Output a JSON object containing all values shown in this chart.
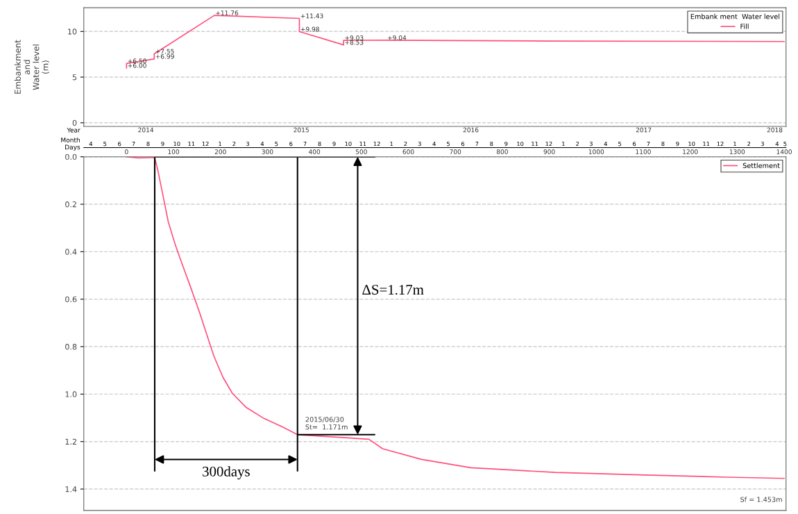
{
  "chart_data": [
    {
      "type": "line",
      "ylabel": "Embankment\nand\nWater level\n(m)",
      "xlabel": "Year",
      "legend_title": "Embank ment  Water level",
      "legend": "top right",
      "grid": "y",
      "xlim": [
        "2014-04-01",
        "2018-05-05"
      ],
      "ylim": [
        -0.4,
        12.6
      ],
      "yticks": [
        0,
        5,
        10
      ],
      "xticks": [
        {
          "value": "2014-08-11",
          "label": "2014"
        },
        {
          "value": "2015-07-08",
          "label": "2015"
        },
        {
          "value": "2016-07-03",
          "label": "2016"
        },
        {
          "value": "2017-07-06",
          "label": "2017"
        },
        {
          "value": "2018-04-11",
          "label": "2018"
        }
      ],
      "series": [
        {
          "name": "Fill",
          "color": "#ff4f7b",
          "x": [
            "2014-07-01",
            "2014-07-01",
            "2014-08-29",
            "2014-08-29",
            "2015-01-04",
            "2015-07-04",
            "2015-07-04",
            "2015-10-06",
            "2015-10-06",
            "2016-01-05",
            "2016-12-17",
            "2018-05-01"
          ],
          "values": [
            6.0,
            6.5,
            6.99,
            7.55,
            11.76,
            11.43,
            9.98,
            8.53,
            9.03,
            9.04,
            8.95,
            8.9
          ]
        }
      ],
      "annotations": [
        {
          "text": "+6.50",
          "x": "2014-07-01",
          "y": 6.5
        },
        {
          "text": "+6.00",
          "x": "2014-07-01",
          "y": 6.0
        },
        {
          "text": "+7.55",
          "x": "2014-08-29",
          "y": 7.55
        },
        {
          "text": "+6.99",
          "x": "2014-08-29",
          "y": 6.99
        },
        {
          "text": "+11.76",
          "x": "2015-01-04",
          "y": 11.76
        },
        {
          "text": "+11.43",
          "x": "2015-07-04",
          "y": 11.43
        },
        {
          "text": "+9.98",
          "x": "2015-07-04",
          "y": 9.98
        },
        {
          "text": "+9.03",
          "x": "2015-10-06",
          "y": 9.03
        },
        {
          "text": "+8.53",
          "x": "2015-10-06",
          "y": 8.53
        },
        {
          "text": "+9.04",
          "x": "2016-01-05",
          "y": 9.04
        }
      ]
    },
    {
      "type": "line",
      "xlabel": "Days",
      "x2label": "Month",
      "legend": "top right",
      "grid": "y",
      "xlim": [
        -91,
        1404
      ],
      "ylim": [
        1.49,
        0
      ],
      "xticks": [
        0,
        100,
        200,
        300,
        400,
        500,
        600,
        700,
        800,
        900,
        1000,
        1100,
        1200,
        1300,
        1400
      ],
      "x2lim": [
        "2014-04-01",
        "2018-05-05"
      ],
      "x2ticks": [
        {
          "value": "2014-04-16",
          "label": "4"
        },
        {
          "value": "2014-05-16",
          "label": "5"
        },
        {
          "value": "2014-06-16",
          "label": "6"
        },
        {
          "value": "2014-07-16",
          "label": "7"
        },
        {
          "value": "2014-08-16",
          "label": "8"
        },
        {
          "value": "2014-09-16",
          "label": "9"
        },
        {
          "value": "2014-10-16",
          "label": "10"
        },
        {
          "value": "2014-11-16",
          "label": "11"
        },
        {
          "value": "2014-12-16",
          "label": "12"
        },
        {
          "value": "2015-01-16",
          "label": "1"
        },
        {
          "value": "2015-02-15",
          "label": "2"
        },
        {
          "value": "2015-03-16",
          "label": "3"
        },
        {
          "value": "2015-04-16",
          "label": "4"
        },
        {
          "value": "2015-05-16",
          "label": "5"
        },
        {
          "value": "2015-06-16",
          "label": "6"
        },
        {
          "value": "2015-07-16",
          "label": "7"
        },
        {
          "value": "2015-08-16",
          "label": "8"
        },
        {
          "value": "2015-09-16",
          "label": "9"
        },
        {
          "value": "2015-10-16",
          "label": "10"
        },
        {
          "value": "2015-11-16",
          "label": "11"
        },
        {
          "value": "2015-12-16",
          "label": "12"
        },
        {
          "value": "2016-01-16",
          "label": "1"
        },
        {
          "value": "2016-02-15",
          "label": "2"
        },
        {
          "value": "2016-03-16",
          "label": "3"
        },
        {
          "value": "2016-04-16",
          "label": "4"
        },
        {
          "value": "2016-05-16",
          "label": "5"
        },
        {
          "value": "2016-06-16",
          "label": "6"
        },
        {
          "value": "2016-07-16",
          "label": "7"
        },
        {
          "value": "2016-08-16",
          "label": "8"
        },
        {
          "value": "2016-09-16",
          "label": "9"
        },
        {
          "value": "2016-10-16",
          "label": "10"
        },
        {
          "value": "2016-11-16",
          "label": "11"
        },
        {
          "value": "2016-12-16",
          "label": "12"
        },
        {
          "value": "2017-01-16",
          "label": "1"
        },
        {
          "value": "2017-02-15",
          "label": "2"
        },
        {
          "value": "2017-03-16",
          "label": "3"
        },
        {
          "value": "2017-04-16",
          "label": "4"
        },
        {
          "value": "2017-05-16",
          "label": "5"
        },
        {
          "value": "2017-06-16",
          "label": "6"
        },
        {
          "value": "2017-07-16",
          "label": "7"
        },
        {
          "value": "2017-08-16",
          "label": "8"
        },
        {
          "value": "2017-09-16",
          "label": "9"
        },
        {
          "value": "2017-10-16",
          "label": "10"
        },
        {
          "value": "2017-11-16",
          "label": "11"
        },
        {
          "value": "2017-12-16",
          "label": "12"
        },
        {
          "value": "2018-01-16",
          "label": "1"
        },
        {
          "value": "2018-02-15",
          "label": "2"
        },
        {
          "value": "2018-03-16",
          "label": "3"
        },
        {
          "value": "2018-04-16",
          "label": "4"
        },
        {
          "value": "2018-05-03",
          "label": "5"
        }
      ],
      "yticks": [
        {
          "value": 0,
          "label": "0.0"
        },
        0.2,
        0.4,
        0.6,
        0.8,
        {
          "value": 1,
          "label": "1.0"
        },
        1.2,
        1.4
      ],
      "series": [
        {
          "name": "Settlement",
          "color": "#ff4f7b",
          "x": [
            0,
            26,
            60,
            67,
            77,
            89,
            104,
            118,
            138,
            157,
            176,
            186,
            205,
            225,
            254,
            293,
            331,
            364,
            516,
            545,
            628,
            733,
            913,
            1092,
            1279,
            1400
          ],
          "values": [
            0.0,
            0.005,
            0.003,
            0.06,
            0.158,
            0.275,
            0.372,
            0.45,
            0.558,
            0.665,
            0.78,
            0.84,
            0.928,
            0.996,
            1.055,
            1.103,
            1.137,
            1.171,
            1.19,
            1.23,
            1.275,
            1.31,
            1.33,
            1.34,
            1.35,
            1.355
          ]
        }
      ],
      "ref_lines": [
        {
          "axis": "x",
          "value": 60,
          "color": "#000000"
        },
        {
          "axis": "x",
          "value": 364,
          "color": "#000000"
        },
        {
          "axis": "y",
          "value": 0,
          "color": "#000000"
        },
        {
          "axis": "y",
          "value": 1.171,
          "color": "#000000"
        }
      ],
      "annotations": [
        "ΔS=1.17m",
        "300days",
        {
          "text": "2015/06/30\nSt=  1.171m",
          "x": 364,
          "y": 1.171
        },
        "Sf = 1.453m"
      ]
    }
  ]
}
